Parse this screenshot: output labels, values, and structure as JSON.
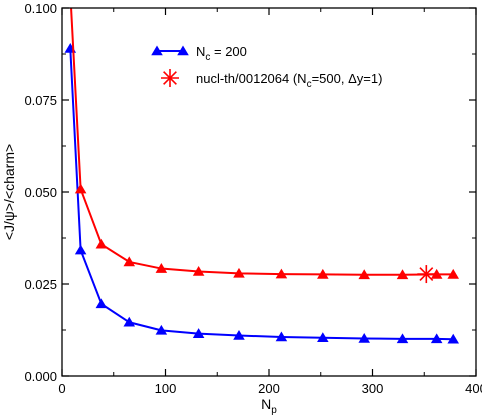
{
  "chart_data": {
    "type": "line",
    "xlabel": "N",
    "xlabel_sub": "p",
    "ylabel": "<J/ψ>/<charm>",
    "xlim": [
      0,
      400
    ],
    "ylim": [
      0,
      0.1
    ],
    "x_ticks": [
      0,
      100,
      200,
      300,
      400
    ],
    "x_tick_labels": [
      "0",
      "100",
      "200",
      "300",
      "400"
    ],
    "y_ticks": [
      0,
      0.025,
      0.05,
      0.075,
      0.1
    ],
    "y_tick_labels": [
      "0.000",
      "0.025",
      "0.050",
      "0.075",
      "0.100"
    ],
    "legend_position": "top-center",
    "series": [
      {
        "legend_main": "N",
        "legend_sub": "c",
        "legend_tail": " = 200",
        "color": "#0000ff",
        "marker": "triangle",
        "x": [
          8,
          18,
          38,
          65,
          96,
          132,
          171,
          212,
          252,
          292,
          329,
          362,
          378
        ],
        "y": [
          0.089,
          0.0342,
          0.0196,
          0.0146,
          0.0124,
          0.0115,
          0.011,
          0.0106,
          0.0104,
          0.0102,
          0.0101,
          0.0101,
          0.01
        ]
      },
      {
        "legend_main": "",
        "legend_sub": "",
        "legend_tail": "",
        "color": "#ff0000",
        "marker": "triangle",
        "x": [
          8,
          18,
          38,
          65,
          96,
          132,
          171,
          212,
          252,
          292,
          329,
          362,
          378
        ],
        "y": [
          0.104,
          0.0508,
          0.0358,
          0.031,
          0.0292,
          0.0284,
          0.0279,
          0.0277,
          0.0276,
          0.0275,
          0.0275,
          0.0276,
          0.0276
        ]
      },
      {
        "legend_main": "nucl-th/0012064 (N",
        "legend_sub": "c",
        "legend_tail": "=500, Δy=1)",
        "color": "#ff0000",
        "marker": "asterisk",
        "x": [
          352
        ],
        "y": [
          0.0277
        ]
      }
    ]
  }
}
